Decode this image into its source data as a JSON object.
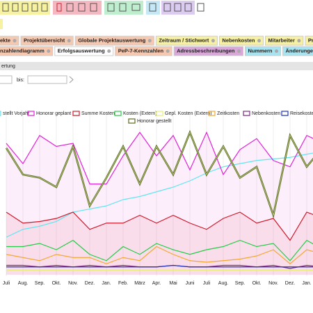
{
  "tabs": {
    "row1": [
      "ekte",
      "Projektübersicht",
      "Globale Projektauswertung",
      "Zeitraum / Stichwort",
      "Nebenkosten",
      "Mitarbeiter",
      "Projek"
    ],
    "row2": [
      "nzahlendiagramm",
      "Erfolgsauswertung",
      "PeP-7-Kennzahlen",
      "Adressbeschreibungen",
      "Nummern",
      "Änderungen Stun"
    ]
  },
  "section": "ertung",
  "filter": {
    "to_label": "bis:"
  },
  "chart_data": {
    "type": "line",
    "categories": [
      "Juli",
      "Aug.",
      "Sep.",
      "Okt.",
      "Nov.",
      "Dez.",
      "Jan.",
      "Feb.",
      "März",
      "Apr.",
      "Mai",
      "Juni",
      "Juli",
      "Aug.",
      "Sep.",
      "Okt.",
      "Nov.",
      "Dez.",
      "Jan.",
      "Feb."
    ],
    "ylim": [
      0,
      100
    ],
    "series": [
      {
        "name": "stellt Vorjahr",
        "color": "#5fe6f0",
        "values": [
          24,
          29,
          31,
          34,
          40,
          42,
          44,
          48,
          50,
          53,
          56,
          60,
          65,
          69,
          71,
          73,
          74,
          75,
          77,
          79
        ]
      },
      {
        "name": "Honorar geplant",
        "color": "#e020d8",
        "area": true,
        "values": [
          84,
          71,
          89,
          82,
          84,
          58,
          58,
          76,
          91,
          76,
          89,
          67,
          91,
          64,
          80,
          87,
          73,
          69,
          89,
          84
        ]
      },
      {
        "name": "Summe Kosten",
        "color": "#d0182a",
        "area": true,
        "values": [
          40,
          33,
          34,
          36,
          40,
          29,
          33,
          33,
          38,
          33,
          38,
          33,
          29,
          36,
          40,
          33,
          36,
          22,
          40,
          36
        ]
      },
      {
        "name": "Kosten (Extern)",
        "color": "#22cc44",
        "values": [
          18,
          18,
          20,
          16,
          22,
          13,
          9,
          18,
          13,
          20,
          16,
          13,
          16,
          18,
          22,
          18,
          20,
          9,
          22,
          16
        ]
      },
      {
        "name": "Gepl. Kosten (Extern)",
        "color": "#e8f070",
        "values": [
          3,
          3,
          3,
          3,
          3,
          3,
          3,
          3,
          3,
          3,
          3,
          3,
          3,
          3,
          3,
          3,
          3,
          3,
          3,
          3
        ]
      },
      {
        "name": "Zeitkosten",
        "color": "#f4a830",
        "values": [
          13,
          11,
          9,
          13,
          11,
          11,
          7,
          11,
          9,
          18,
          13,
          9,
          8,
          9,
          10,
          12,
          16,
          7,
          16,
          13
        ]
      },
      {
        "name": "Nebenkosten",
        "color": "#7a2a80",
        "values": [
          6,
          6,
          5,
          6,
          5,
          6,
          5,
          6,
          5,
          5,
          6,
          5,
          5,
          6,
          6,
          5,
          6,
          4,
          6,
          5
        ]
      },
      {
        "name": "Reisekosten",
        "color": "#2030c0",
        "values": [
          5,
          5,
          5,
          5,
          5,
          5,
          5,
          5,
          5,
          5,
          6,
          5,
          5,
          5,
          5,
          5,
          5,
          5,
          5,
          5
        ]
      },
      {
        "name": "Honorar gestellt",
        "color": "#5a6a20",
        "double": true,
        "values": [
          81,
          64,
          62,
          56,
          82,
          44,
          62,
          82,
          58,
          82,
          64,
          91,
          64,
          82,
          62,
          69,
          38,
          89,
          69,
          82
        ]
      }
    ]
  }
}
